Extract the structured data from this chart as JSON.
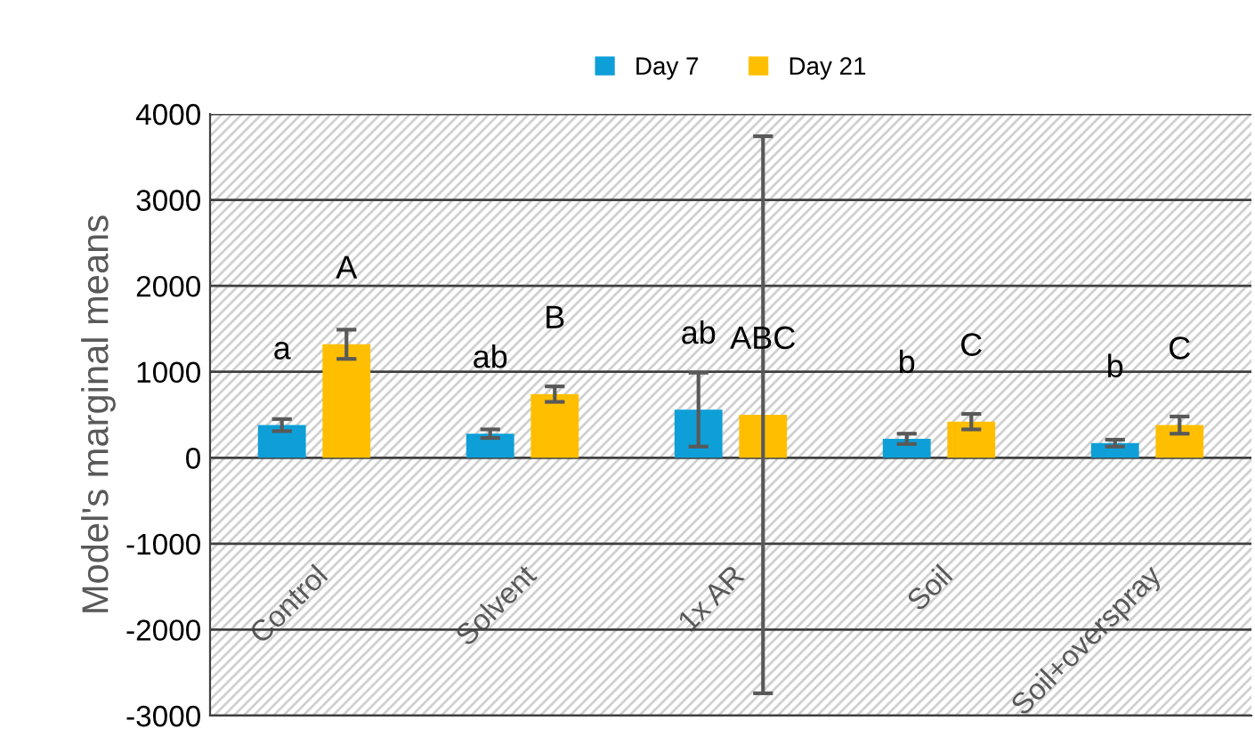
{
  "chart_data": {
    "type": "bar",
    "categories": [
      "Control",
      "Solvent",
      "1x AR",
      "Soil",
      "Soil+overspray"
    ],
    "series": [
      {
        "name": "Day 7",
        "color": "#0e9fd8",
        "values": [
          380,
          280,
          560,
          220,
          170
        ],
        "errors": [
          70,
          50,
          430,
          60,
          40
        ],
        "value_labels": [
          "a",
          "ab",
          "ab",
          "b",
          "b"
        ]
      },
      {
        "name": "Day 21",
        "color": "#ffbf00",
        "values": [
          1320,
          740,
          500,
          420,
          380
        ],
        "errors": [
          170,
          90,
          3240,
          90,
          100
        ],
        "value_labels": [
          "A",
          "B",
          "ABC",
          "C",
          "C"
        ]
      }
    ],
    "ylabel": "Model's marginal means",
    "ylim": [
      -3000,
      4000
    ],
    "yticks": [
      -3000,
      -2000,
      -1000,
      0,
      1000,
      2000,
      3000,
      4000
    ],
    "grid": "y",
    "legend": "top"
  }
}
